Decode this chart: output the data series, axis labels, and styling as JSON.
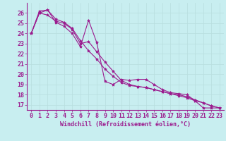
{
  "title": "",
  "xlabel": "Windchill (Refroidissement éolien,°C)",
  "ylabel": "",
  "bg_color": "#c8eef0",
  "line_color": "#9b1b8e",
  "grid_color": "#b8dede",
  "x_data": [
    0,
    1,
    2,
    3,
    4,
    5,
    6,
    7,
    8,
    9,
    10,
    11,
    12,
    13,
    14,
    15,
    16,
    17,
    18,
    19,
    20,
    21,
    22,
    23
  ],
  "line1": [
    24.0,
    26.2,
    26.3,
    25.1,
    24.7,
    24.0,
    22.7,
    25.3,
    23.1,
    19.3,
    19.0,
    19.5,
    19.4,
    19.5,
    19.5,
    19.0,
    18.5,
    18.2,
    18.1,
    18.0,
    17.4,
    16.7,
    16.7,
    16.7
  ],
  "line2": [
    24.0,
    26.0,
    25.8,
    25.2,
    25.0,
    24.4,
    23.0,
    23.2,
    22.2,
    21.2,
    20.3,
    19.4,
    19.0,
    18.8,
    18.7,
    18.5,
    18.3,
    18.1,
    18.0,
    17.8,
    17.5,
    17.2,
    16.9,
    16.7
  ],
  "line3": [
    24.0,
    26.0,
    26.3,
    25.4,
    25.1,
    24.5,
    23.3,
    22.3,
    21.5,
    20.5,
    19.8,
    19.2,
    18.9,
    18.8,
    18.7,
    18.5,
    18.3,
    18.1,
    17.9,
    17.7,
    17.4,
    17.2,
    16.9,
    16.7
  ],
  "ylim": [
    16.5,
    27.0
  ],
  "xlim": [
    -0.5,
    23.5
  ],
  "yticks": [
    17,
    18,
    19,
    20,
    21,
    22,
    23,
    24,
    25,
    26
  ],
  "xticks": [
    0,
    1,
    2,
    3,
    4,
    5,
    6,
    7,
    8,
    9,
    10,
    11,
    12,
    13,
    14,
    15,
    16,
    17,
    18,
    19,
    20,
    21,
    22,
    23
  ],
  "font_size": 6,
  "marker": "*",
  "marker_size": 3,
  "line_width": 0.8
}
